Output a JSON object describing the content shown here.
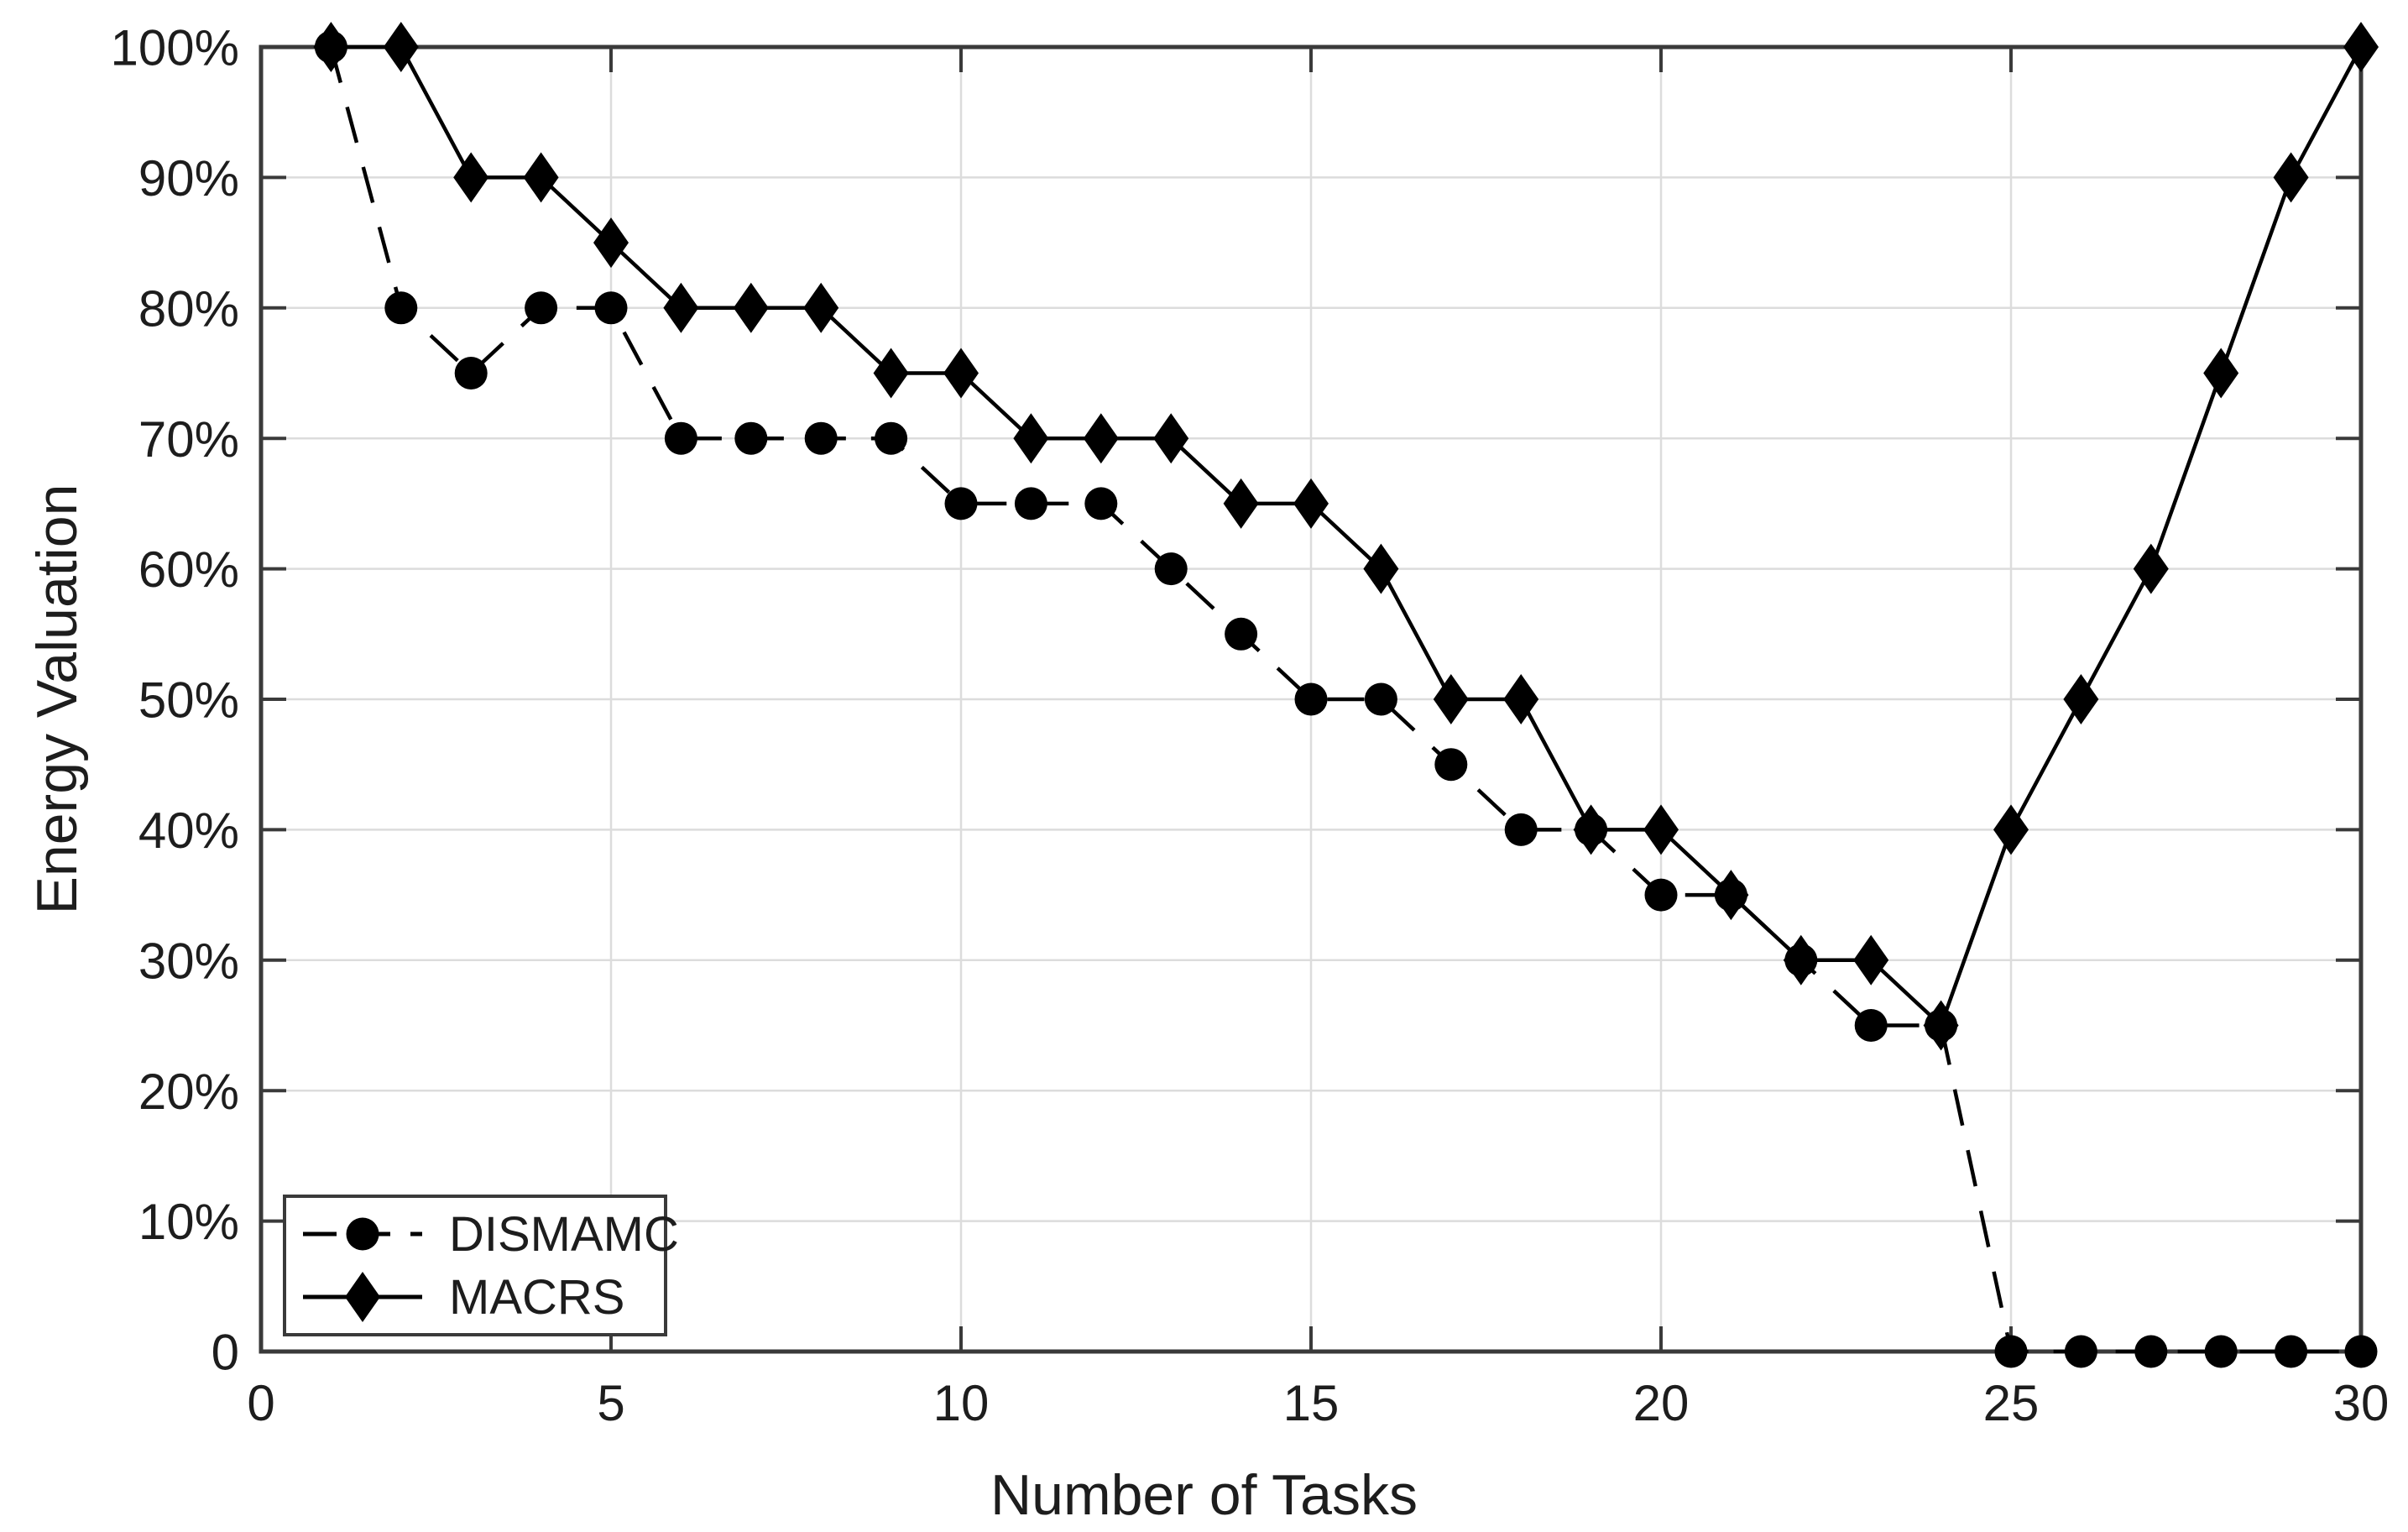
{
  "chart_data": {
    "type": "line",
    "title": "",
    "xlabel": "Number of Tasks",
    "ylabel": "Energy Valuation",
    "xlim": [
      0,
      30
    ],
    "ylim": [
      0,
      100
    ],
    "x_ticks": [
      0,
      5,
      10,
      15,
      20,
      25,
      30
    ],
    "x_tick_labels": [
      "0",
      "5",
      "10",
      "15",
      "20",
      "25",
      "30"
    ],
    "y_ticks": [
      0,
      10,
      20,
      30,
      40,
      50,
      60,
      70,
      80,
      90,
      100
    ],
    "y_tick_labels": [
      "0",
      "10%",
      "20%",
      "30%",
      "40%",
      "50%",
      "60%",
      "70%",
      "80%",
      "90%",
      "100%"
    ],
    "grid": true,
    "legend_position": "bottom-left",
    "x": [
      1,
      2,
      3,
      4,
      5,
      6,
      7,
      8,
      9,
      10,
      11,
      12,
      13,
      14,
      15,
      16,
      17,
      18,
      19,
      20,
      21,
      22,
      23,
      24,
      25,
      26,
      27,
      28,
      29,
      30
    ],
    "series": [
      {
        "name": "DISMAMC",
        "line_style": "dashed",
        "marker": "circle",
        "color": "#000000",
        "values": [
          100,
          80,
          75,
          80,
          80,
          70,
          70,
          70,
          70,
          65,
          65,
          65,
          60,
          55,
          50,
          50,
          45,
          40,
          40,
          35,
          35,
          30,
          25,
          25,
          0,
          0,
          0,
          0,
          0,
          0
        ]
      },
      {
        "name": "MACRS",
        "line_style": "solid",
        "marker": "diamond",
        "color": "#000000",
        "values": [
          100,
          100,
          90,
          90,
          85,
          80,
          80,
          80,
          75,
          75,
          70,
          70,
          70,
          65,
          65,
          60,
          50,
          50,
          40,
          40,
          35,
          30,
          30,
          25,
          40,
          50,
          60,
          75,
          90,
          100
        ]
      }
    ],
    "legend": {
      "items": [
        "DISMAMC",
        "MACRS"
      ]
    },
    "colors": {
      "series": "#000000",
      "axis": "#3a3a3a",
      "grid": "#dcdcdc",
      "text": "#1d1d1d",
      "background": "#ffffff"
    }
  }
}
